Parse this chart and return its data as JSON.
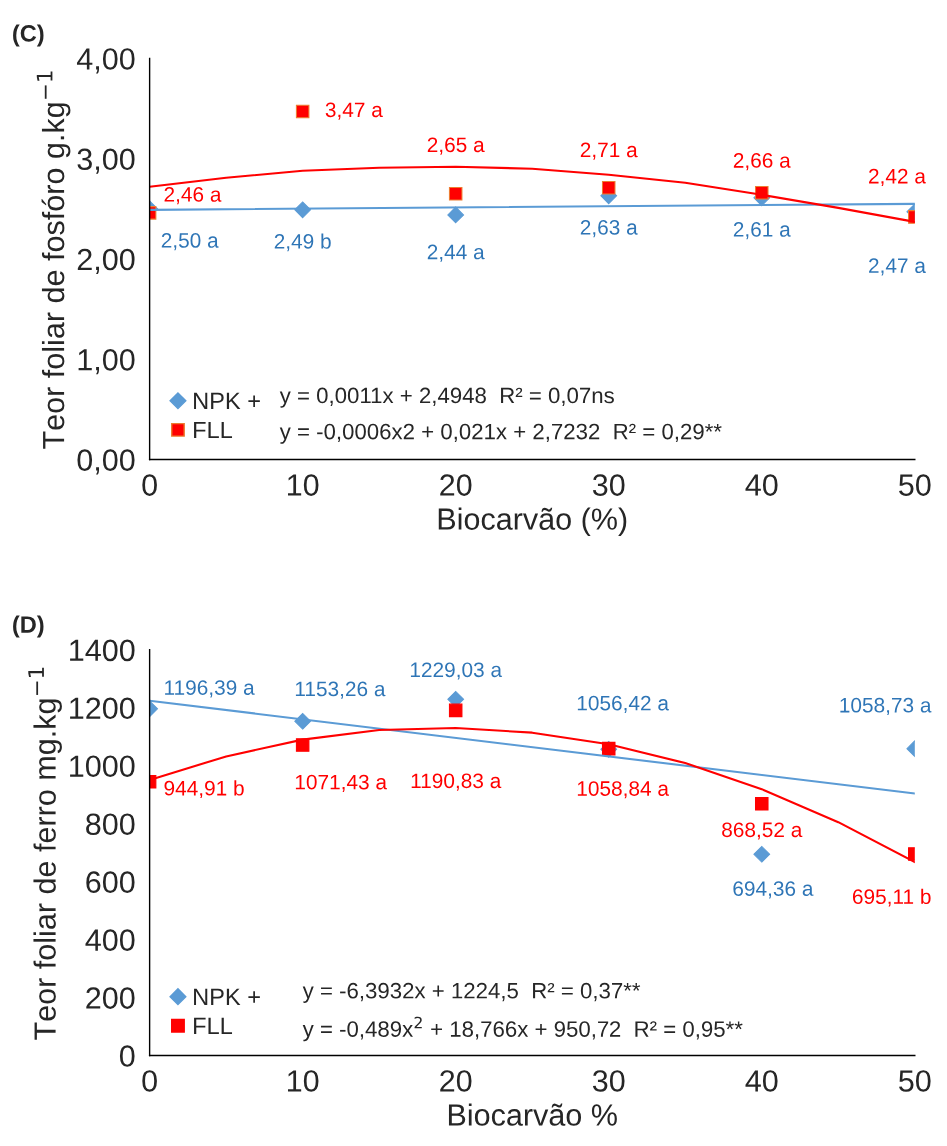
{
  "chart_data": [
    {
      "type": "scatter",
      "title": "(C)",
      "xlabel": "Biocarvão (%)",
      "ylabel": "Teor foliar de fosfóro g.kg$^{−1}$",
      "x": [
        0,
        10,
        20,
        30,
        40,
        50
      ],
      "xlim": [
        0,
        50
      ],
      "xticks": [
        0,
        10,
        20,
        30,
        40,
        50
      ],
      "ylim": [
        0,
        4
      ],
      "yticks": [
        {
          "value": 0,
          "label": "0,00"
        },
        {
          "value": 1,
          "label": "1,00"
        },
        {
          "value": 2,
          "label": "2,00"
        },
        {
          "value": 3,
          "label": "3,00"
        },
        {
          "value": 4,
          "label": "4,00"
        }
      ],
      "series": [
        {
          "name": "NPK +",
          "type": "scatter",
          "marker": "diamond",
          "color": "#5b9bd5",
          "values": [
            2.5,
            2.49,
            2.44,
            2.63,
            2.61,
            2.47
          ],
          "value_labels": [
            "2,50 a",
            "2,49 b",
            "2,44 a",
            "2,63 a",
            "2,61 a",
            "2,47 a"
          ]
        },
        {
          "name": "FLL",
          "type": "scatter",
          "marker": "square",
          "color": "#ff0000",
          "values": [
            2.46,
            3.47,
            2.65,
            2.71,
            2.66,
            2.42
          ],
          "value_labels": [
            "2,46 a",
            "3,47 a",
            "2,65 a",
            "2,71 a",
            "2,66 a",
            "2,42 a"
          ]
        },
        {
          "type": "line",
          "color": "#5b9bd5",
          "x": [
            0,
            50
          ],
          "values": [
            2.49,
            2.55
          ]
        },
        {
          "type": "line",
          "color": "#ff0000",
          "x": [
            0,
            5,
            10,
            15,
            20,
            25,
            30,
            35,
            40,
            45,
            50
          ],
          "values": [
            2.72,
            2.81,
            2.88,
            2.91,
            2.92,
            2.9,
            2.84,
            2.76,
            2.64,
            2.51,
            2.37
          ]
        }
      ],
      "annotations": [
        "y = 0,0011x + 2,4948  R² = 0,07ns",
        "y = -0,0006x2 + 0,021x + 2,7232  R² = 0,29**"
      ],
      "legend": "bottom left",
      "grid": false
    },
    {
      "type": "scatter",
      "title": "(D)",
      "xlabel": "Biocarvão %",
      "ylabel": "Teor foliar de ferro mg.kg$^{−1}$",
      "x": [
        0,
        10,
        20,
        30,
        40,
        50
      ],
      "xlim": [
        0,
        50
      ],
      "xticks": [
        0,
        10,
        20,
        30,
        40,
        50
      ],
      "ylim": [
        0,
        1400
      ],
      "yticks": [
        0,
        200,
        400,
        600,
        800,
        1000,
        1200,
        1400
      ],
      "series": [
        {
          "name": "NPK +",
          "type": "scatter",
          "marker": "diamond",
          "color": "#5b9bd5",
          "values": [
            1196.39,
            1153.26,
            1229.03,
            1056.42,
            694.36,
            1058.73
          ],
          "value_labels": [
            "1196,39 a",
            "1153,26 a",
            "1229,03 a",
            "1056,42 a",
            "694,36 a",
            "1058,73 a"
          ]
        },
        {
          "name": "FLL",
          "type": "scatter",
          "marker": "square",
          "color": "#ff0000",
          "values": [
            944.91,
            1071.43,
            1190.83,
            1058.84,
            868.52,
            695.11
          ],
          "value_labels": [
            "944,91 b",
            "1071,43 a",
            "1190,83 a",
            "1058,84 a",
            "868,52 a",
            "695,11 b"
          ]
        },
        {
          "type": "line",
          "color": "#5b9bd5",
          "x": [
            0,
            50
          ],
          "values": [
            1224,
            904
          ]
        },
        {
          "type": "line",
          "color": "#ff0000",
          "x": [
            0,
            5,
            10,
            15,
            20,
            25,
            30,
            35,
            40,
            45,
            50
          ],
          "values": [
            951,
            1032,
            1090,
            1123,
            1130,
            1114,
            1074,
            1009,
            919,
            805,
            667
          ]
        }
      ],
      "annotations": [
        "y = -6,3932x + 1224,5  R² = 0,37**",
        "y = -0,489x$^{2}$ + 18,766x + 950,72  R² = 0,95**"
      ],
      "legend": "bottom left",
      "grid": false
    }
  ]
}
